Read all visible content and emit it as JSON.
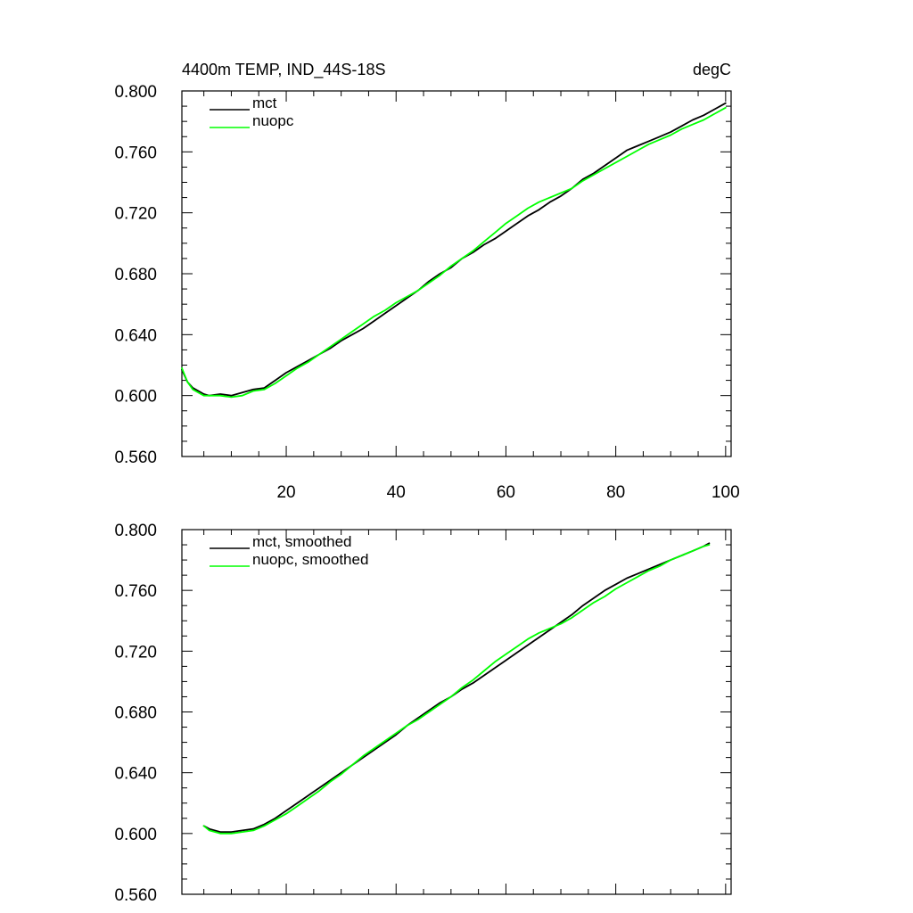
{
  "chart_data": [
    {
      "type": "line",
      "title": "4400m TEMP, IND_44S-18S",
      "units": "degC",
      "xlabel": "",
      "ylabel": "",
      "xlim": [
        1,
        101
      ],
      "ylim": [
        0.56,
        0.8
      ],
      "xticks": [
        20,
        40,
        60,
        80,
        100
      ],
      "xtick_labels": [
        "20",
        "40",
        "60",
        "80",
        "100"
      ],
      "yticks": [
        0.56,
        0.6,
        0.64,
        0.68,
        0.72,
        0.76,
        0.8
      ],
      "ytick_labels": [
        "0.560",
        "0.600",
        "0.640",
        "0.680",
        "0.720",
        "0.760",
        "0.800"
      ],
      "legend_position": "top-left",
      "grid": false,
      "series": [
        {
          "name": "mct",
          "color": "#000000",
          "x": [
            1,
            2,
            3,
            4,
            5,
            6,
            8,
            10,
            12,
            14,
            16,
            18,
            20,
            22,
            24,
            26,
            28,
            30,
            32,
            34,
            36,
            38,
            40,
            42,
            44,
            46,
            48,
            50,
            52,
            54,
            56,
            58,
            60,
            62,
            64,
            66,
            68,
            70,
            72,
            74,
            76,
            78,
            80,
            82,
            84,
            86,
            88,
            90,
            92,
            94,
            96,
            98,
            100
          ],
          "values": [
            0.617,
            0.609,
            0.605,
            0.603,
            0.601,
            0.6,
            0.601,
            0.6,
            0.602,
            0.604,
            0.605,
            0.61,
            0.615,
            0.619,
            0.623,
            0.627,
            0.631,
            0.636,
            0.64,
            0.644,
            0.649,
            0.654,
            0.659,
            0.664,
            0.669,
            0.675,
            0.68,
            0.684,
            0.69,
            0.694,
            0.699,
            0.703,
            0.708,
            0.713,
            0.718,
            0.722,
            0.727,
            0.731,
            0.736,
            0.742,
            0.746,
            0.751,
            0.756,
            0.761,
            0.764,
            0.767,
            0.77,
            0.773,
            0.777,
            0.781,
            0.784,
            0.788,
            0.792
          ]
        },
        {
          "name": "nuopc",
          "color": "#00ff00",
          "x": [
            1,
            2,
            3,
            4,
            5,
            6,
            8,
            10,
            12,
            14,
            16,
            18,
            20,
            22,
            24,
            26,
            28,
            30,
            32,
            34,
            36,
            38,
            40,
            42,
            44,
            46,
            48,
            50,
            52,
            54,
            56,
            58,
            60,
            62,
            64,
            66,
            68,
            70,
            72,
            74,
            76,
            78,
            80,
            82,
            84,
            86,
            88,
            90,
            92,
            94,
            96,
            98,
            100
          ],
          "values": [
            0.618,
            0.609,
            0.604,
            0.602,
            0.6,
            0.6,
            0.6,
            0.599,
            0.6,
            0.603,
            0.604,
            0.608,
            0.613,
            0.618,
            0.622,
            0.627,
            0.632,
            0.637,
            0.642,
            0.647,
            0.652,
            0.656,
            0.661,
            0.665,
            0.669,
            0.674,
            0.679,
            0.685,
            0.69,
            0.695,
            0.701,
            0.707,
            0.713,
            0.718,
            0.723,
            0.727,
            0.73,
            0.733,
            0.736,
            0.741,
            0.745,
            0.749,
            0.753,
            0.757,
            0.761,
            0.765,
            0.768,
            0.771,
            0.775,
            0.778,
            0.781,
            0.785,
            0.789
          ]
        }
      ]
    },
    {
      "type": "line",
      "title": "",
      "xlabel": "",
      "ylabel": "",
      "xlim": [
        1,
        101
      ],
      "ylim": [
        0.56,
        0.8
      ],
      "xticks": [
        20,
        40,
        60,
        80,
        100
      ],
      "yticks": [
        0.56,
        0.6,
        0.64,
        0.68,
        0.72,
        0.76,
        0.8
      ],
      "ytick_labels": [
        "0.560",
        "0.600",
        "0.640",
        "0.680",
        "0.720",
        "0.760",
        "0.800"
      ],
      "legend_position": "top-left",
      "grid": false,
      "series": [
        {
          "name": "mct, smoothed",
          "color": "#000000",
          "x": [
            5,
            6,
            8,
            10,
            12,
            14,
            16,
            18,
            20,
            22,
            24,
            26,
            28,
            30,
            32,
            34,
            36,
            38,
            40,
            42,
            44,
            46,
            48,
            50,
            52,
            54,
            56,
            58,
            60,
            62,
            64,
            66,
            68,
            70,
            72,
            74,
            76,
            78,
            80,
            82,
            84,
            86,
            88,
            90,
            92,
            94,
            96,
            97
          ],
          "values": [
            0.605,
            0.603,
            0.601,
            0.601,
            0.602,
            0.603,
            0.606,
            0.61,
            0.615,
            0.62,
            0.625,
            0.63,
            0.635,
            0.64,
            0.645,
            0.65,
            0.655,
            0.66,
            0.665,
            0.671,
            0.676,
            0.681,
            0.686,
            0.69,
            0.695,
            0.699,
            0.704,
            0.709,
            0.714,
            0.719,
            0.724,
            0.729,
            0.734,
            0.739,
            0.744,
            0.75,
            0.755,
            0.76,
            0.764,
            0.768,
            0.771,
            0.774,
            0.777,
            0.78,
            0.783,
            0.786,
            0.789,
            0.791
          ]
        },
        {
          "name": "nuopc, smoothed",
          "color": "#00ff00",
          "x": [
            5,
            6,
            8,
            10,
            12,
            14,
            16,
            18,
            20,
            22,
            24,
            26,
            28,
            30,
            32,
            34,
            36,
            38,
            40,
            42,
            44,
            46,
            48,
            50,
            52,
            54,
            56,
            58,
            60,
            62,
            64,
            66,
            68,
            70,
            72,
            74,
            76,
            78,
            80,
            82,
            84,
            86,
            88,
            90,
            92,
            94,
            96,
            97
          ],
          "values": [
            0.605,
            0.602,
            0.6,
            0.6,
            0.601,
            0.602,
            0.605,
            0.609,
            0.613,
            0.618,
            0.623,
            0.628,
            0.634,
            0.639,
            0.645,
            0.651,
            0.656,
            0.661,
            0.666,
            0.671,
            0.675,
            0.68,
            0.685,
            0.69,
            0.696,
            0.701,
            0.707,
            0.713,
            0.718,
            0.723,
            0.728,
            0.732,
            0.735,
            0.738,
            0.742,
            0.747,
            0.752,
            0.756,
            0.761,
            0.765,
            0.769,
            0.773,
            0.776,
            0.78,
            0.783,
            0.786,
            0.789,
            0.79
          ]
        }
      ]
    }
  ]
}
